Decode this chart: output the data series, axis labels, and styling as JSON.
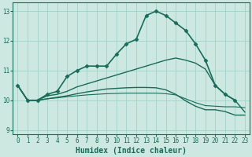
{
  "xlabel": "Humidex (Indice chaleur)",
  "background_color": "#cce8e0",
  "line_color": "#1a6b5a",
  "grid_color": "#9ecec4",
  "xlim": [
    -0.5,
    23.5
  ],
  "ylim": [
    8.85,
    13.3
  ],
  "yticks": [
    9,
    10,
    11,
    12,
    13
  ],
  "xticks": [
    0,
    1,
    2,
    3,
    4,
    5,
    6,
    7,
    8,
    9,
    10,
    11,
    12,
    13,
    14,
    15,
    16,
    17,
    18,
    19,
    20,
    21,
    22,
    23
  ],
  "lines": [
    {
      "x": [
        0,
        1,
        2,
        3,
        4,
        5,
        6,
        7,
        8,
        9,
        10,
        11,
        12,
        13,
        14,
        15,
        16,
        17,
        18,
        19,
        20,
        21,
        22
      ],
      "y": [
        10.5,
        10.0,
        10.0,
        10.2,
        10.3,
        10.8,
        11.0,
        11.15,
        11.15,
        11.15,
        11.55,
        11.9,
        12.05,
        12.85,
        13.0,
        12.85,
        12.6,
        12.35,
        11.9,
        11.35,
        10.5,
        10.2,
        10.0
      ],
      "marker": "D",
      "markersize": 2.5,
      "linewidth": 1.2
    },
    {
      "x": [
        0,
        1,
        2,
        3,
        4,
        5,
        6,
        7,
        8,
        9,
        10,
        11,
        12,
        13,
        14,
        15,
        16,
        17,
        18,
        19,
        20,
        21,
        22,
        23
      ],
      "y": [
        10.5,
        10.0,
        10.0,
        10.15,
        10.2,
        10.3,
        10.45,
        10.55,
        10.65,
        10.75,
        10.85,
        10.95,
        11.05,
        11.15,
        11.25,
        11.35,
        11.42,
        11.35,
        11.25,
        11.05,
        10.5,
        10.2,
        10.0,
        9.6
      ],
      "marker": null,
      "markersize": 0,
      "linewidth": 1.0
    },
    {
      "x": [
        0,
        1,
        2,
        3,
        4,
        5,
        6,
        7,
        8,
        9,
        10,
        11,
        12,
        13,
        14,
        15,
        16,
        17,
        18,
        19,
        20,
        21,
        22,
        23
      ],
      "y": [
        10.5,
        10.0,
        10.0,
        10.05,
        10.1,
        10.15,
        10.22,
        10.28,
        10.33,
        10.38,
        10.4,
        10.42,
        10.43,
        10.43,
        10.42,
        10.35,
        10.2,
        9.98,
        9.8,
        9.68,
        9.68,
        9.62,
        9.5,
        9.5
      ],
      "marker": null,
      "markersize": 0,
      "linewidth": 1.0
    },
    {
      "x": [
        0,
        1,
        2,
        3,
        4,
        5,
        6,
        7,
        8,
        9,
        10,
        11,
        12,
        13,
        14,
        15,
        16,
        17,
        18,
        19,
        20,
        21,
        22,
        23
      ],
      "y": [
        10.5,
        10.0,
        10.0,
        10.05,
        10.08,
        10.12,
        10.15,
        10.18,
        10.2,
        10.22,
        10.23,
        10.24,
        10.24,
        10.24,
        10.24,
        10.22,
        10.18,
        10.05,
        9.92,
        9.82,
        9.8,
        9.78,
        9.78,
        9.75
      ],
      "marker": null,
      "markersize": 0,
      "linewidth": 0.8
    }
  ],
  "tick_fontsize": 5.5,
  "label_fontsize": 7
}
